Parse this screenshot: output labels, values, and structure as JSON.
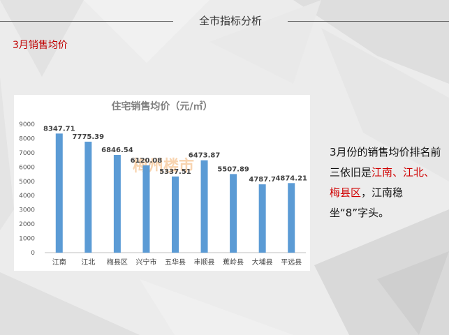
{
  "header": {
    "title": "全市指标分析"
  },
  "section": {
    "title": "3月销售均价"
  },
  "description": {
    "part1": "3月份的销售均价排名前三依旧是",
    "highlight": "江南、江北、梅县区",
    "part2": "，江南稳坐“8”字头。"
  },
  "watermark": {
    "text": "梅州楼市"
  },
  "colors": {
    "bar": "#5b9bd5",
    "highlight": "#d00000",
    "section_title": "#c00000"
  },
  "chart_data": {
    "type": "bar",
    "title": "住宅销售均价（元/㎡）",
    "categories": [
      "江南",
      "江北",
      "梅县区",
      "兴宁市",
      "五华县",
      "丰顺县",
      "蕉岭县",
      "大埔县",
      "平远县"
    ],
    "values": [
      8347.71,
      7775.39,
      6846.54,
      6120.08,
      5337.51,
      6473.87,
      5507.89,
      4787.7,
      4874.21
    ],
    "value_labels": [
      "8347.71",
      "7775.39",
      "6846.54",
      "6120.08",
      "5337.51",
      "6473.87",
      "5507.89",
      "4787.7",
      "4874.21"
    ],
    "ylim": [
      0,
      9000
    ],
    "yticks": [
      "0",
      "1000",
      "2000",
      "3000",
      "4000",
      "5000",
      "6000",
      "7000",
      "8000",
      "9000"
    ],
    "grid": false,
    "xlabel": "",
    "ylabel": ""
  }
}
